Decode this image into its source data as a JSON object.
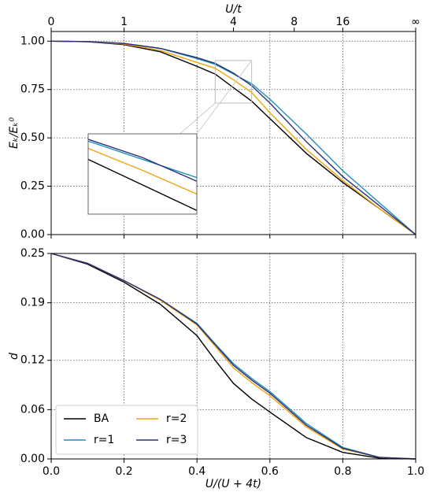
{
  "chart_data": [
    {
      "type": "line",
      "ylabel": "Eₖ/Eₖ⁰",
      "x2label": "U/t",
      "x": [
        0,
        0.1,
        0.2,
        0.3,
        0.4,
        0.45,
        0.5,
        0.55,
        0.6,
        0.7,
        0.8,
        0.9,
        1.0
      ],
      "series": [
        {
          "color": "#000000",
          "values": [
            1,
            0.997,
            0.982,
            0.945,
            0.87,
            0.83,
            0.76,
            0.69,
            0.6,
            0.42,
            0.27,
            0.135,
            0
          ]
        },
        {
          "color": "#1f8fb8",
          "values": [
            1,
            0.998,
            0.988,
            0.962,
            0.91,
            0.88,
            0.83,
            0.78,
            0.7,
            0.52,
            0.33,
            0.165,
            0
          ]
        },
        {
          "color": "#f0a30a",
          "values": [
            1,
            0.998,
            0.985,
            0.952,
            0.89,
            0.86,
            0.8,
            0.735,
            0.63,
            0.44,
            0.28,
            0.135,
            0
          ]
        },
        {
          "color": "#2b2f7a",
          "values": [
            1,
            0.998,
            0.988,
            0.963,
            0.915,
            0.885,
            0.835,
            0.77,
            0.68,
            0.48,
            0.3,
            0.15,
            0
          ]
        }
      ],
      "xlim": [
        0,
        1
      ],
      "ylim": [
        0,
        1.05
      ],
      "yticks": [
        {
          "value": 0,
          "label": "0.00"
        },
        0.25,
        {
          "value": 0.5,
          "label": "0.50"
        },
        0.75,
        {
          "value": 1,
          "label": "1.00"
        }
      ],
      "x2ticks": [
        {
          "value": 0,
          "label": "0"
        },
        {
          "value": 0.2,
          "label": "1"
        },
        {
          "value": 0.5,
          "label": "4"
        },
        {
          "value": 0.6667,
          "label": "8"
        },
        {
          "value": 0.8,
          "label": "16"
        },
        {
          "value": 1,
          "label": "∞"
        }
      ],
      "grid": true,
      "inset": {
        "xlim": [
          0.45,
          0.55
        ],
        "ylim": [
          0.68,
          0.9
        ]
      }
    },
    {
      "type": "line",
      "ylabel": "d",
      "xlabel": "U/(U + 4t)",
      "x": [
        0,
        0.1,
        0.2,
        0.3,
        0.4,
        0.45,
        0.5,
        0.55,
        0.6,
        0.7,
        0.8,
        0.9,
        1.0
      ],
      "series": [
        {
          "name": "BA",
          "color": "#000000",
          "values": [
            0.25,
            0.237,
            0.215,
            0.188,
            0.15,
            0.12,
            0.092,
            0.073,
            0.057,
            0.026,
            0.008,
            0.001,
            0
          ]
        },
        {
          "name": "r=1",
          "color": "#1f8fb8",
          "values": [
            0.25,
            0.238,
            0.217,
            0.194,
            0.165,
            0.14,
            0.116,
            0.098,
            0.082,
            0.043,
            0.014,
            0.002,
            0
          ]
        },
        {
          "name": "r=2",
          "color": "#f0a30a",
          "values": [
            0.25,
            0.238,
            0.217,
            0.193,
            0.163,
            0.137,
            0.111,
            0.093,
            0.077,
            0.039,
            0.012,
            0.002,
            0
          ]
        },
        {
          "name": "r=3",
          "color": "#2b2f7a",
          "values": [
            0.25,
            0.238,
            0.217,
            0.194,
            0.164,
            0.139,
            0.114,
            0.096,
            0.08,
            0.041,
            0.013,
            0.002,
            0
          ]
        }
      ],
      "xlim": [
        0,
        1
      ],
      "ylim": [
        0,
        0.25
      ],
      "xticks": [
        {
          "value": 0,
          "label": "0.0"
        },
        0.2,
        0.4,
        0.6,
        0.8,
        {
          "value": 1,
          "label": "1.0"
        }
      ],
      "yticks": [
        {
          "value": 0,
          "label": "0.00"
        },
        0.06,
        0.12,
        0.19,
        0.25
      ],
      "grid": true,
      "legend": "lower left"
    }
  ]
}
